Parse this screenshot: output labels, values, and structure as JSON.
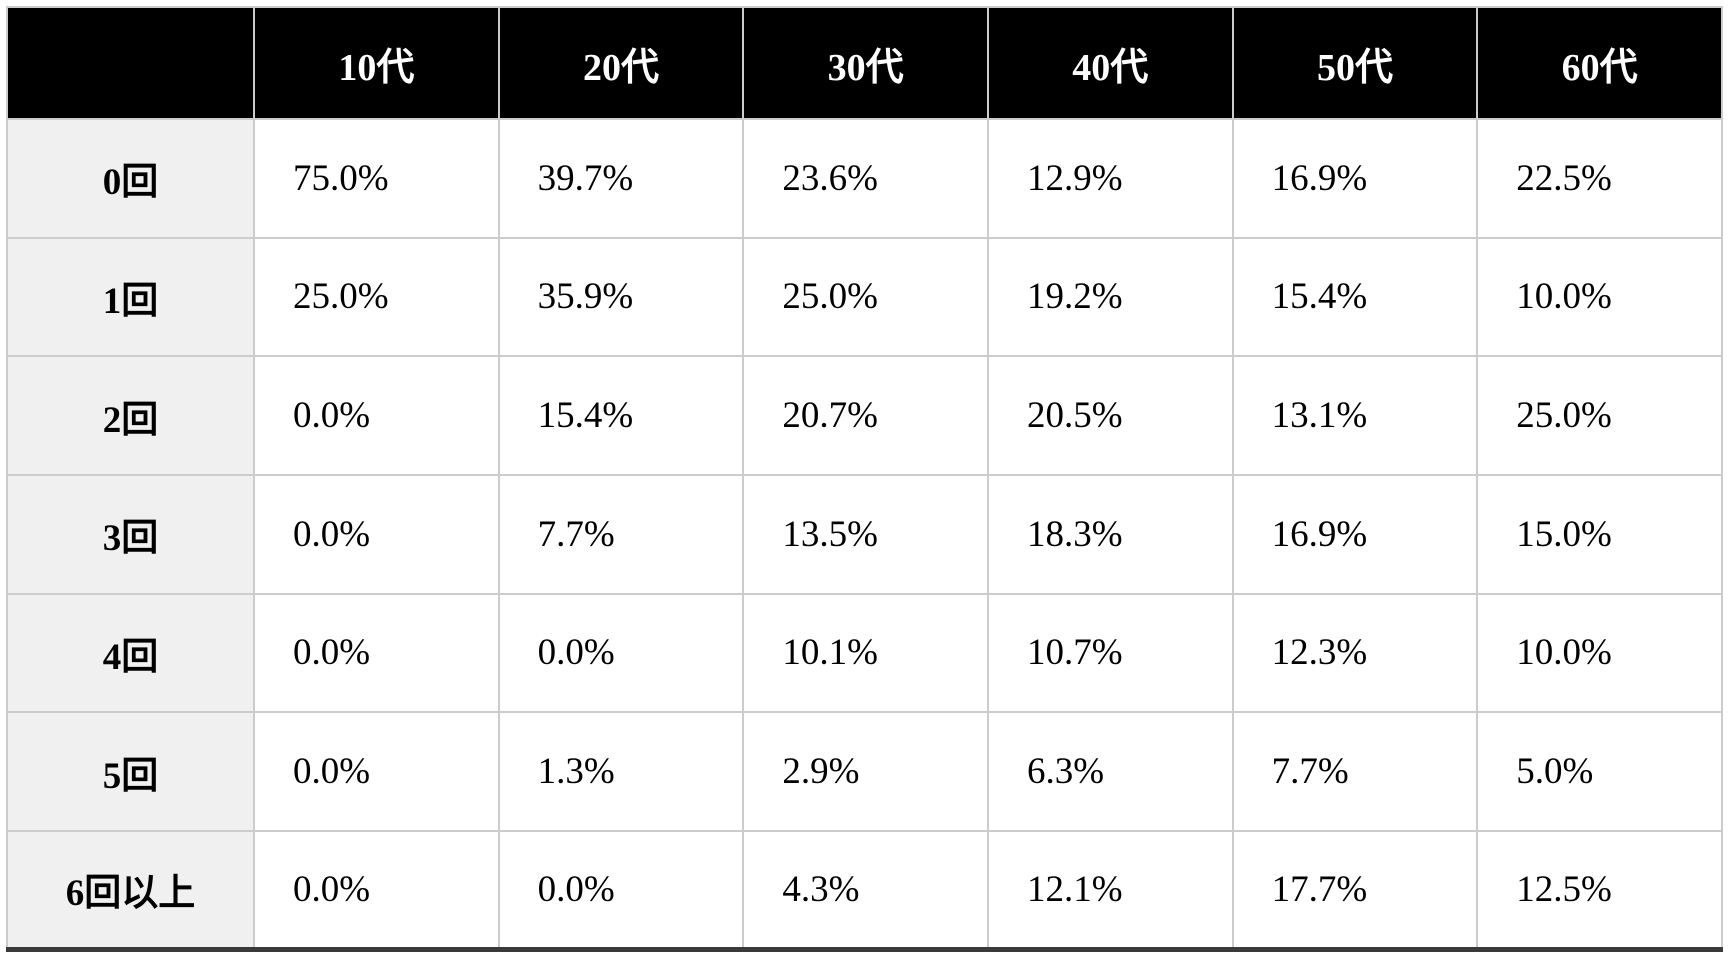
{
  "table": {
    "columns": [
      "10代",
      "20代",
      "30代",
      "40代",
      "50代",
      "60代"
    ],
    "rows": [
      {
        "label": "0回",
        "values": [
          "75.0%",
          "39.7%",
          "23.6%",
          "12.9%",
          "16.9%",
          "22.5%"
        ]
      },
      {
        "label": "1回",
        "values": [
          "25.0%",
          "35.9%",
          "25.0%",
          "19.2%",
          "15.4%",
          "10.0%"
        ]
      },
      {
        "label": "2回",
        "values": [
          "0.0%",
          "15.4%",
          "20.7%",
          "20.5%",
          "13.1%",
          "25.0%"
        ]
      },
      {
        "label": "3回",
        "values": [
          "0.0%",
          "7.7%",
          "13.5%",
          "18.3%",
          "16.9%",
          "15.0%"
        ]
      },
      {
        "label": "4回",
        "values": [
          "0.0%",
          "0.0%",
          "10.1%",
          "10.7%",
          "12.3%",
          "10.0%"
        ]
      },
      {
        "label": "5回",
        "values": [
          "0.0%",
          "1.3%",
          "2.9%",
          "6.3%",
          "7.7%",
          "5.0%"
        ]
      },
      {
        "label": "6回以上",
        "values": [
          "0.0%",
          "0.0%",
          "4.3%",
          "12.1%",
          "17.7%",
          "12.5%"
        ]
      }
    ]
  },
  "colors": {
    "header_bg": "#000000",
    "header_text": "#ffffff",
    "row_label_bg": "#f0f0f0",
    "grid_line": "#cccccc",
    "bottom_border": "#3a3a3a",
    "body_text": "#000000"
  },
  "chart_data": {
    "type": "table",
    "columns": [
      "10代",
      "20代",
      "30代",
      "40代",
      "50代",
      "60代"
    ],
    "row_labels": [
      "0回",
      "1回",
      "2回",
      "3回",
      "4回",
      "5回",
      "6回以上"
    ],
    "values_percent": [
      [
        75.0,
        39.7,
        23.6,
        12.9,
        16.9,
        22.5
      ],
      [
        25.0,
        35.9,
        25.0,
        19.2,
        15.4,
        10.0
      ],
      [
        0.0,
        15.4,
        20.7,
        20.5,
        13.1,
        25.0
      ],
      [
        0.0,
        7.7,
        13.5,
        18.3,
        16.9,
        15.0
      ],
      [
        0.0,
        0.0,
        10.1,
        10.7,
        12.3,
        10.0
      ],
      [
        0.0,
        1.3,
        2.9,
        6.3,
        7.7,
        5.0
      ],
      [
        0.0,
        0.0,
        4.3,
        12.1,
        17.7,
        12.5
      ]
    ]
  }
}
